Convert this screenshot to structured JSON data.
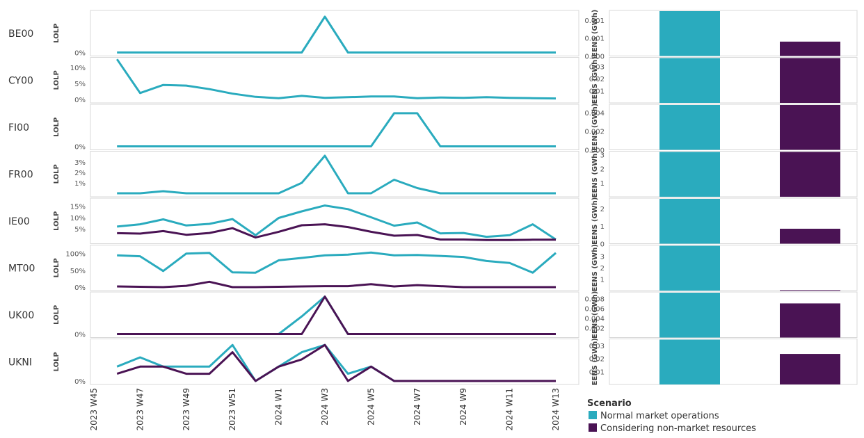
{
  "chart_data": {
    "type": "line",
    "x": [
      "2023 W45",
      "2023 W46",
      "2023 W47",
      "2023 W48",
      "2023 W49",
      "2023 W50",
      "2023 W51",
      "2023 W52",
      "2024 W1",
      "2024 W2",
      "2024 W3",
      "2024 W4",
      "2024 W5",
      "2024 W6",
      "2024 W7",
      "2024 W8",
      "2024 W9",
      "2024 W10",
      "2024 W11",
      "2024 W12",
      "2024 W13"
    ],
    "x_tick_labels": [
      "2023 W45",
      "2023 W47",
      "2023 W49",
      "2023 W51",
      "2024 W1",
      "2024 W3",
      "2024 W5",
      "2024 W7",
      "2024 W9",
      "2024 W11",
      "2024 W13"
    ],
    "line_axis_label": "LOLP",
    "bar_axis_label": "EENS (GWh)",
    "legend": {
      "title": "Scenario",
      "items": [
        {
          "label": "Normal market operations",
          "color": "#2aabbe"
        },
        {
          "label": "Considering non-market resources",
          "color": "#4a1354"
        }
      ]
    },
    "regions": [
      {
        "name": "BE00",
        "line_ymax": 0.07,
        "line_ticks": [
          {
            "value": 0,
            "label": "0%"
          }
        ],
        "normal": [
          null,
          0,
          0,
          0,
          0,
          0,
          0,
          0,
          0,
          0,
          0.065,
          0,
          0,
          0,
          0,
          0,
          0,
          0,
          0,
          0,
          0
        ],
        "nonmarket": null,
        "bar_ymax": 0.00125,
        "bar_ticks": [
          {
            "value": 0,
            "label": "0.000"
          },
          {
            "value": 0.0005,
            "label": "0.001"
          },
          {
            "value": 0.001,
            "label": "0.001"
          }
        ],
        "eens_normal": 0.00125,
        "eens_nonmarket": 0.0004
      },
      {
        "name": "CY00",
        "line_ymax": 0.12,
        "line_ticks": [
          {
            "value": 0,
            "label": "0%"
          },
          {
            "value": 0.05,
            "label": "5%"
          },
          {
            "value": 0.1,
            "label": "10%"
          }
        ],
        "normal": [
          null,
          0.125,
          0.02,
          0.045,
          0.043,
          0.032,
          0.018,
          0.008,
          0.004,
          0.011,
          0.005,
          0.007,
          0.009,
          0.009,
          0.004,
          0.006,
          0.005,
          0.007,
          0.005,
          0.004,
          0.003
        ],
        "nonmarket": null,
        "bar_ymax": 0.037,
        "bar_ticks": [
          {
            "value": 0.01,
            "label": "0.01"
          },
          {
            "value": 0.02,
            "label": "0.02"
          },
          {
            "value": 0.03,
            "label": "0.03"
          }
        ],
        "eens_normal": 0.037,
        "eens_nonmarket": 0.037
      },
      {
        "name": "FI00",
        "line_ymax": 0.07,
        "line_ticks": [
          {
            "value": 0,
            "label": "0%"
          }
        ],
        "normal": [
          null,
          0,
          0,
          0,
          0,
          0,
          0,
          0,
          0,
          0,
          0,
          0,
          0,
          0.06,
          0.06,
          0,
          0,
          0,
          0,
          0,
          0
        ],
        "nonmarket": null,
        "bar_ymax": 0.0048,
        "bar_ticks": [
          {
            "value": 0,
            "label": "0.000"
          },
          {
            "value": 0.002,
            "label": "0.002"
          },
          {
            "value": 0.004,
            "label": "0.004"
          }
        ],
        "eens_normal": 0.0048,
        "eens_nonmarket": 0.0048
      },
      {
        "name": "FR00",
        "line_ymax": 0.037,
        "line_ticks": [
          {
            "value": 0.01,
            "label": "1%"
          },
          {
            "value": 0.02,
            "label": "2%"
          },
          {
            "value": 0.03,
            "label": "3%"
          }
        ],
        "normal": [
          null,
          0,
          0,
          0.002,
          0,
          0,
          0,
          0,
          0,
          0.01,
          0.036,
          0,
          0,
          0.013,
          0.005,
          0,
          0,
          0,
          0,
          0,
          0
        ],
        "nonmarket": null,
        "bar_ymax": 3.2,
        "bar_ticks": [
          {
            "value": 1,
            "label": "1"
          },
          {
            "value": 2,
            "label": "2"
          },
          {
            "value": 3,
            "label": "3"
          }
        ],
        "eens_normal": 3.2,
        "eens_nonmarket": 3.2
      },
      {
        "name": "IE00",
        "line_ymax": 0.17,
        "line_ticks": [
          {
            "value": 0.05,
            "label": "5%"
          },
          {
            "value": 0.1,
            "label": "10%"
          },
          {
            "value": 0.15,
            "label": "15%"
          }
        ],
        "normal": [
          null,
          0.06,
          0.07,
          0.092,
          0.065,
          0.072,
          0.093,
          0.022,
          0.098,
          0.127,
          0.153,
          0.137,
          0.101,
          0.064,
          0.078,
          0.03,
          0.032,
          0.015,
          0.022,
          0.07,
          0.003
        ],
        "nonmarket": [
          null,
          0.031,
          0.029,
          0.04,
          0.024,
          0.032,
          0.053,
          0.012,
          0.037,
          0.066,
          0.07,
          0.058,
          0.037,
          0.02,
          0.023,
          0.003,
          0.003,
          0.001,
          0.001,
          0.002,
          0.002
        ],
        "bar_ymax": 2.55,
        "bar_ticks": [
          {
            "value": 0,
            "label": "0"
          },
          {
            "value": 1,
            "label": "1"
          },
          {
            "value": 2,
            "label": "2"
          }
        ],
        "eens_normal": 2.55,
        "eens_nonmarket": 0.85
      },
      {
        "name": "MT00",
        "line_ymax": 1.15,
        "line_ticks": [
          {
            "value": 0,
            "label": "0%"
          },
          {
            "value": 0.5,
            "label": "50%"
          },
          {
            "value": 1.0,
            "label": "100%"
          }
        ],
        "normal": [
          null,
          0.95,
          0.92,
          0.48,
          1.0,
          1.02,
          0.44,
          0.43,
          0.8,
          0.87,
          0.95,
          0.97,
          1.03,
          0.95,
          0.96,
          0.93,
          0.9,
          0.78,
          0.72,
          0.43,
          1.02
        ],
        "nonmarket": [
          null,
          0.02,
          0.01,
          0.0,
          0.04,
          0.16,
          0.0,
          0.0,
          0.01,
          0.02,
          0.03,
          0.03,
          0.09,
          0.02,
          0.06,
          0.03,
          0.0,
          0.0,
          0.0,
          0.0,
          0.0
        ],
        "bar_ymax": 3.9,
        "bar_ticks": [
          {
            "value": 1,
            "label": "1"
          },
          {
            "value": 2,
            "label": "2"
          },
          {
            "value": 3,
            "label": "3"
          }
        ],
        "eens_normal": 3.9,
        "eens_nonmarket": 0.04
      },
      {
        "name": "UK00",
        "line_ymax": 0.07,
        "line_ticks": [
          {
            "value": 0,
            "label": "0%"
          }
        ],
        "normal": [
          null,
          0,
          0,
          0,
          0,
          0,
          0,
          0,
          0,
          0.032,
          0.068,
          0,
          0,
          0,
          0,
          0,
          0,
          0,
          0,
          0,
          0
        ],
        "nonmarket": [
          null,
          0,
          0,
          0,
          0,
          0,
          0,
          0,
          0,
          0,
          0.068,
          0,
          0,
          0,
          0,
          0,
          0,
          0,
          0,
          0,
          0
        ],
        "bar_ymax": 0.0092,
        "bar_ticks": [
          {
            "value": 0.002,
            "label": "0.002"
          },
          {
            "value": 0.004,
            "label": "0.004"
          },
          {
            "value": 0.006,
            "label": "0.006"
          },
          {
            "value": 0.008,
            "label": "0.008"
          }
        ],
        "eens_normal": 0.0092,
        "eens_nonmarket": 0.007
      },
      {
        "name": "UKNI",
        "line_ymax": 0.075,
        "line_ticks": [
          {
            "value": 0,
            "label": "0%"
          }
        ],
        "normal": [
          null,
          0.028,
          0.046,
          0.028,
          0.028,
          0.028,
          0.07,
          0.0,
          0.028,
          0.056,
          0.07,
          0.014,
          0.028,
          0.0,
          0.0,
          0.0,
          0.0,
          0.0,
          0.0,
          0.0,
          0.0
        ],
        "nonmarket": [
          null,
          0.014,
          0.028,
          0.028,
          0.014,
          0.014,
          0.056,
          0.0,
          0.028,
          0.042,
          0.07,
          0.0,
          0.028,
          0.0,
          0.0,
          0.0,
          0.0,
          0.0,
          0.0,
          0.0,
          0.0
        ],
        "bar_ymax": 0.0345,
        "bar_ticks": [
          {
            "value": 0.01,
            "label": "0.01"
          },
          {
            "value": 0.02,
            "label": "0.02"
          },
          {
            "value": 0.03,
            "label": "0.03"
          }
        ],
        "eens_normal": 0.0345,
        "eens_nonmarket": 0.0235
      }
    ]
  }
}
